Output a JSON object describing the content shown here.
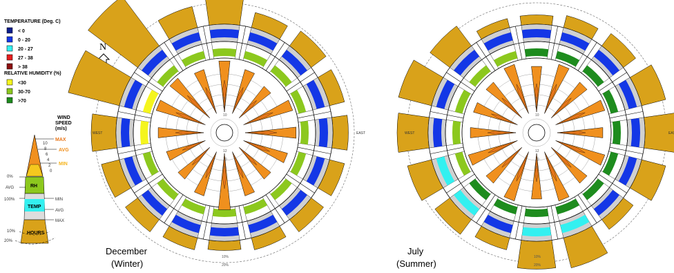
{
  "legend": {
    "temperature_title": "TEMPERATURE (Deg. C)",
    "temperature_items": [
      {
        "label": "< 0",
        "color": "#0b1e8c"
      },
      {
        "label": "0  -  20",
        "color": "#1437e6"
      },
      {
        "label": "20  -  27",
        "color": "#33f0f0"
      },
      {
        "label": "27  -  38",
        "color": "#e61e1e"
      },
      {
        "label": "> 38",
        "color": "#8c0f0f"
      }
    ],
    "humidity_title": "RELATIVE HUMIDITY (%)",
    "humidity_items": [
      {
        "label": "<30",
        "color": "#f5f51e"
      },
      {
        "label": "30-70",
        "color": "#8cc81e"
      },
      {
        "label": ">70",
        "color": "#1e8c1e"
      }
    ],
    "compass_label": "N"
  },
  "key": {
    "wind_speed_title_1": "WIND",
    "wind_speed_title_2": "SPEED",
    "wind_speed_title_3": "(m/s)",
    "speed_ticks": [
      "10",
      "8",
      "6",
      "4",
      "2",
      "0"
    ],
    "max_label": "MAX",
    "avg_label": "AVG",
    "min_label": "MIN",
    "rh_label": "RH",
    "rh_top": "0%",
    "rh_avg": "AVG",
    "rh_bottom": "100%",
    "rh_min": "MIN",
    "temp_label": "TEMP",
    "temp_avg": "AVG",
    "temp_max": "MAX",
    "hours_label": "HOURS",
    "hours_10": "10%",
    "hours_20": "20%",
    "colors": {
      "wind": "#f0901e",
      "avg_color": "#f0901e",
      "max_color": "#e8761a",
      "min_color": "#f5c81e",
      "rh": "#8cc81e",
      "temp": "#33f0f0",
      "hours": "#d9a21a"
    }
  },
  "labels": {
    "west": "WEST",
    "east": "EAST",
    "ring_10": "10%",
    "ring_20": "20%",
    "wind_ring_ticks": [
      "8",
      "6",
      "10",
      "12",
      "10",
      "8"
    ]
  },
  "chart_data": [
    {
      "type": "wind-rose",
      "title": "December",
      "subtitle": "(Winter)",
      "directions": 16,
      "hours_percent": [
        13,
        5,
        6,
        5,
        5,
        5,
        5,
        4,
        3,
        4,
        5,
        6,
        8,
        17,
        20,
        7
      ],
      "wind_max": [
        10,
        9,
        8,
        10,
        10,
        9,
        8,
        9,
        11,
        9,
        8,
        8,
        9,
        10,
        10,
        9
      ],
      "temperature_band": [
        "0-20",
        "0-20",
        "0-20",
        "0-20",
        "0-20",
        "0-20",
        "0-20",
        "0-20",
        "0-20",
        "0-20",
        "0-20",
        "0-20",
        "0-20",
        "0-20",
        "0-20",
        "0-20"
      ],
      "humidity_band": [
        "30-70",
        "30-70",
        "30-70",
        "30-70",
        "30-70",
        "30-70",
        "30-70",
        "30-70",
        "30-70",
        "30-70",
        "30-70",
        "30-70",
        "<30",
        "<30",
        "30-70",
        "30-70"
      ],
      "caption_1": "December",
      "caption_2": "(Winter)"
    },
    {
      "type": "wind-rose",
      "title": "July",
      "subtitle": "(Summer)",
      "directions": 16,
      "hours_percent": [
        3,
        4,
        5,
        8,
        11,
        8,
        4,
        10,
        9,
        4,
        6,
        8,
        10,
        11,
        8,
        3
      ],
      "wind_max": [
        9,
        10,
        9,
        10,
        9,
        10,
        9,
        10,
        9,
        10,
        9,
        10,
        9,
        9,
        9,
        10
      ],
      "temperature_band": [
        "0-20",
        "0-20",
        "0-20",
        "0-20",
        "0-20",
        "0-20",
        "0-20",
        "20-27",
        "20-27",
        "0-20",
        "20-27",
        "20-27",
        "0-20",
        "0-20",
        "0-20",
        "0-20"
      ],
      "humidity_band": [
        ">70",
        ">70",
        ">70",
        ">70",
        ">70",
        ">70",
        ">70",
        ">70",
        ">70",
        ">70",
        ">70",
        "30-70",
        "30-70",
        "30-70",
        "30-70",
        "30-70"
      ],
      "caption_1": "July",
      "caption_2": "(Summer)"
    }
  ]
}
